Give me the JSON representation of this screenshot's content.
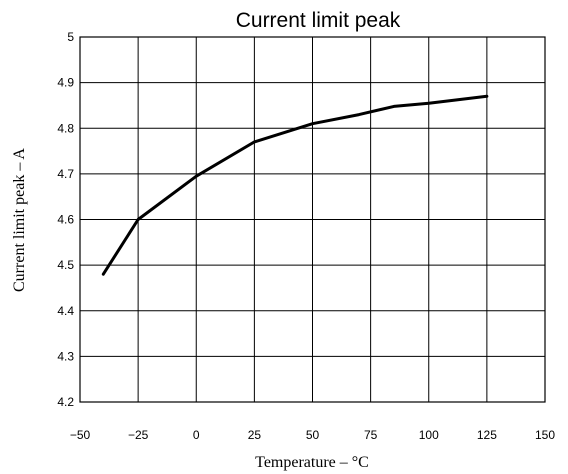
{
  "chart_data": {
    "type": "line",
    "title": "Current limit peak",
    "xlabel": "Temperature  –  °C",
    "ylabel": "Current limit peak  –  A",
    "xlim": [
      -50,
      150
    ],
    "ylim": [
      4.2,
      5.0
    ],
    "x_ticks": [
      -50,
      -25,
      0,
      25,
      50,
      75,
      100,
      125,
      150
    ],
    "x_tick_labels": [
      "−50",
      "−25",
      "0",
      "25",
      "50",
      "75",
      "100",
      "125",
      "150"
    ],
    "y_ticks": [
      4.2,
      4.3,
      4.4,
      4.5,
      4.6,
      4.7,
      4.8,
      4.9,
      5.0
    ],
    "y_tick_labels": [
      "4.2",
      "4.3",
      "4.4",
      "4.5",
      "4.6",
      "4.7",
      "4.8",
      "4.9",
      "5"
    ],
    "grid": true,
    "series": [
      {
        "x": [
          -40,
          -25,
          0,
          25,
          50,
          70,
          85,
          100,
          125
        ],
        "y": [
          4.48,
          4.6,
          4.695,
          4.77,
          4.81,
          4.83,
          4.848,
          4.855,
          4.87
        ]
      }
    ]
  }
}
